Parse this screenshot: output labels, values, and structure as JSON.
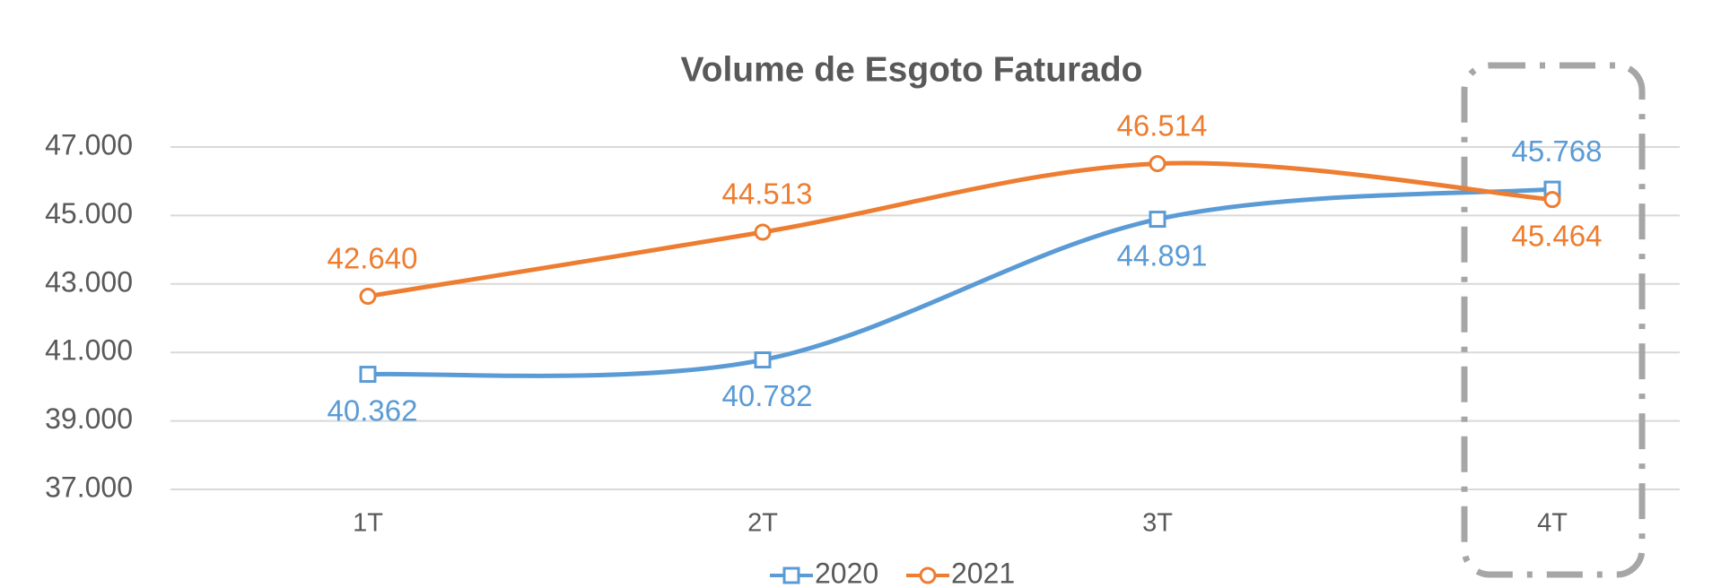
{
  "chart_data": {
    "type": "line",
    "title": "Volume de Esgoto Faturado",
    "categories": [
      "1T",
      "2T",
      "3T",
      "4T"
    ],
    "series": [
      {
        "name": "2020",
        "color": "#5b9bd5",
        "marker": "square",
        "values": [
          40362,
          40782,
          44891,
          45768
        ],
        "value_labels": [
          "40.362",
          "40.782",
          "44.891",
          "45.768"
        ]
      },
      {
        "name": "2021",
        "color": "#ed7d31",
        "marker": "circle",
        "values": [
          42640,
          44513,
          46514,
          45464
        ],
        "value_labels": [
          "42.640",
          "44.513",
          "46.514",
          "45.464"
        ]
      }
    ],
    "ylim": [
      37000,
      47000
    ],
    "yticks": [
      {
        "value": 37000,
        "label": "37.000"
      },
      {
        "value": 39000,
        "label": "39.000"
      },
      {
        "value": 41000,
        "label": "41.000"
      },
      {
        "value": 43000,
        "label": "43.000"
      },
      {
        "value": 45000,
        "label": "45.000"
      },
      {
        "value": 47000,
        "label": "47.000"
      }
    ],
    "grid": true,
    "smooth": true,
    "legend": "bottom"
  }
}
